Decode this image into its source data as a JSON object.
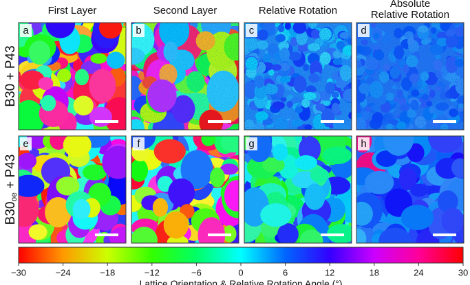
{
  "columns": [
    "First Layer",
    "Second Layer",
    "Relative Rotation",
    [
      "Absolute",
      "Relative Rotation"
    ]
  ],
  "rows": [
    [
      "B30",
      "",
      " + P43"
    ],
    [
      "B30",
      "oe",
      " + P43"
    ]
  ],
  "panels": [
    "a",
    "b",
    "c",
    "d",
    "e",
    "f",
    "g",
    "h"
  ],
  "colorbar": {
    "lim": [
      -30,
      30
    ],
    "ticks": [
      {
        "value": -30,
        "label": "−30"
      },
      {
        "value": -24,
        "label": "−24"
      },
      {
        "value": -18,
        "label": "−18"
      },
      {
        "value": -12,
        "label": "−12"
      },
      {
        "value": -6,
        "label": "−6"
      },
      0,
      6,
      12,
      18,
      24,
      30
    ],
    "label": "Lattice Orientation & Relative Rotation Angle (°)"
  }
}
